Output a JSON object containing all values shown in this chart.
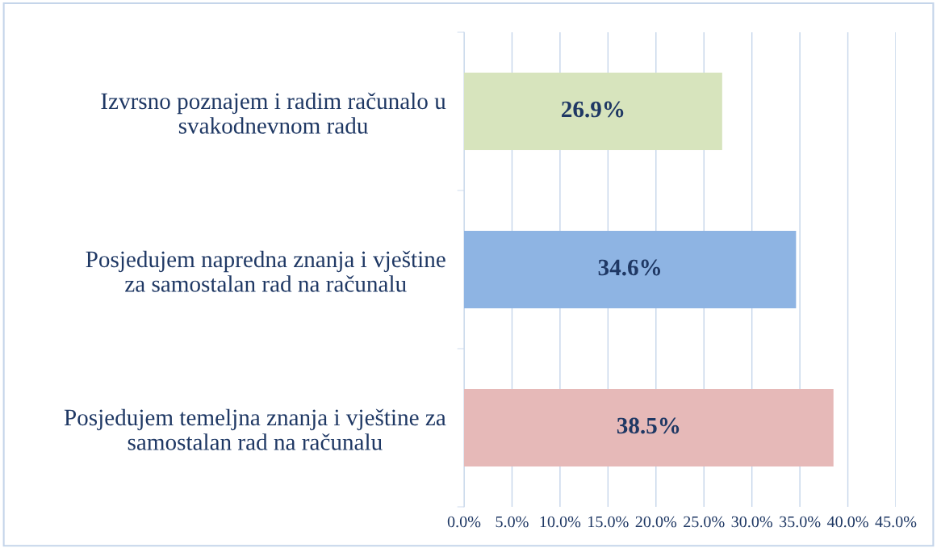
{
  "chart_data": {
    "type": "bar",
    "orientation": "horizontal",
    "categories": [
      "Izvrsno poznajem i radim računalo u\nsvakodnevnom radu",
      "Posjedujem napredna znanja i vještine\nza samostalan rad na računalu",
      "Posjedujem temeljna znanja i vještine za\nsamostalan rad na računalu"
    ],
    "values": [
      26.9,
      34.6,
      38.5
    ],
    "colors": [
      "#d7e4bd",
      "#8eb4e3",
      "#e6b9b8"
    ],
    "value_labels": [
      "26.9%",
      "34.6%",
      "38.5%"
    ],
    "xlim": [
      0,
      45
    ],
    "xticks": [
      {
        "value": 0,
        "label": "0.0%"
      },
      {
        "value": 5,
        "label": "5.0%"
      },
      {
        "value": 10,
        "label": "10.0%"
      },
      {
        "value": 15,
        "label": "15.0%"
      },
      {
        "value": 20,
        "label": "20.0%"
      },
      {
        "value": 25,
        "label": "25.0%"
      },
      {
        "value": 30,
        "label": "30.0%"
      },
      {
        "value": 35,
        "label": "35.0%"
      },
      {
        "value": 40,
        "label": "40.0%"
      },
      {
        "value": 45,
        "label": "45.0%"
      }
    ],
    "grid": "x",
    "legend": false
  }
}
